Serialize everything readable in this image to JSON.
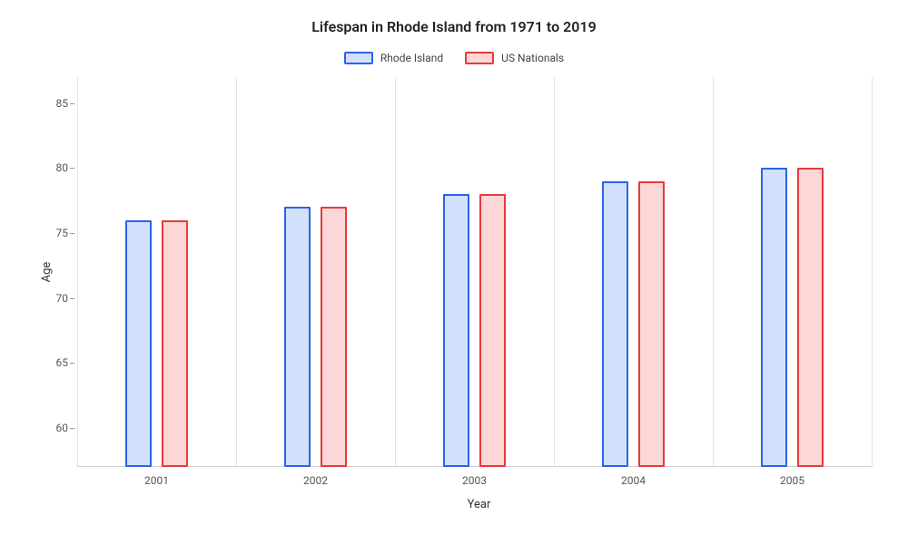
{
  "chart": {
    "type": "bar",
    "title": "Lifespan in Rhode Island from 1971 to 2019",
    "title_fontsize": 16,
    "background_color": "#ffffff",
    "grid_color": "#e4e4e4",
    "xlabel": "Year",
    "ylabel": "Age",
    "label_fontsize": 13,
    "tick_fontsize": 12,
    "tick_color": "#555555",
    "categories": [
      "2001",
      "2002",
      "2003",
      "2004",
      "2005"
    ],
    "ylim": [
      57,
      87
    ],
    "yticks": [
      60,
      65,
      70,
      75,
      80,
      85
    ],
    "bar_width_pct": 3.3,
    "series": [
      {
        "name": "Rhode Island",
        "values": [
          76,
          77,
          78,
          79,
          80
        ],
        "fill_color": "#d3e0fb",
        "border_color": "#2a63e8",
        "border_width": 2
      },
      {
        "name": "US Nationals",
        "values": [
          76,
          77,
          78,
          79,
          80
        ],
        "fill_color": "#fbd7d7",
        "border_color": "#e83a3a",
        "border_width": 2
      }
    ],
    "legend": {
      "position": "top-center",
      "swatch_width": 32,
      "swatch_height": 14
    }
  }
}
